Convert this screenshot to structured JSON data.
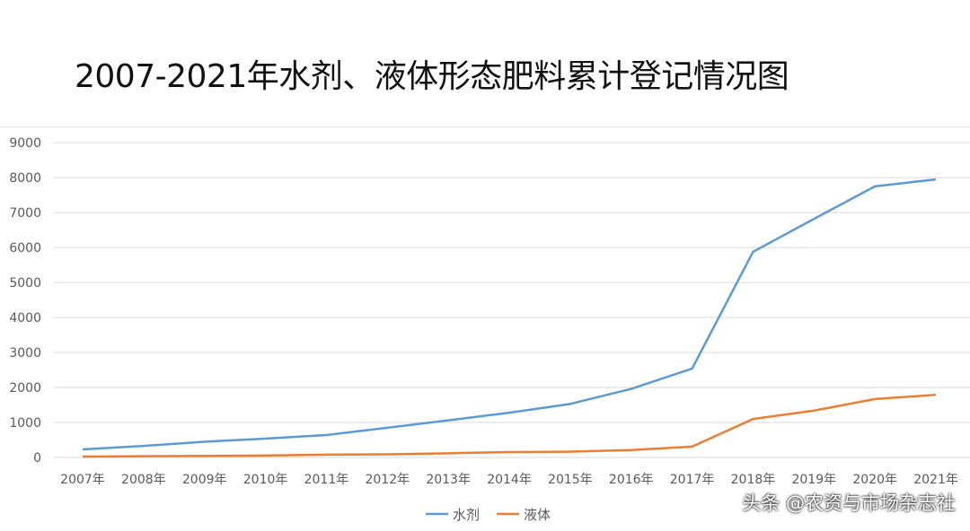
{
  "chart_data": {
    "type": "line",
    "title": "2007-2021年水剂、液体形态肥料累计登记情况图",
    "xlabel": "",
    "ylabel": "",
    "categories": [
      "2007年",
      "2008年",
      "2009年",
      "2010年",
      "2011年",
      "2012年",
      "2013年",
      "2014年",
      "2015年",
      "2016年",
      "2017年",
      "2018年",
      "2019年",
      "2020年",
      "2021年"
    ],
    "ylim": [
      0,
      9000
    ],
    "yticks": [
      0,
      1000,
      2000,
      3000,
      4000,
      5000,
      6000,
      7000,
      8000,
      9000
    ],
    "grid": true,
    "legend_position": "bottom",
    "series": [
      {
        "name": "水剂",
        "color": "#5b9bd5",
        "values": [
          230,
          330,
          450,
          540,
          640,
          850,
          1060,
          1280,
          1530,
          1960,
          2540,
          5880,
          6820,
          7750,
          7950
        ]
      },
      {
        "name": "液体",
        "color": "#ed7d31",
        "values": [
          25,
          35,
          45,
          55,
          80,
          90,
          120,
          155,
          165,
          210,
          310,
          1100,
          1340,
          1670,
          1790
        ]
      }
    ]
  },
  "watermark": "头条 @农资与市场杂志社"
}
